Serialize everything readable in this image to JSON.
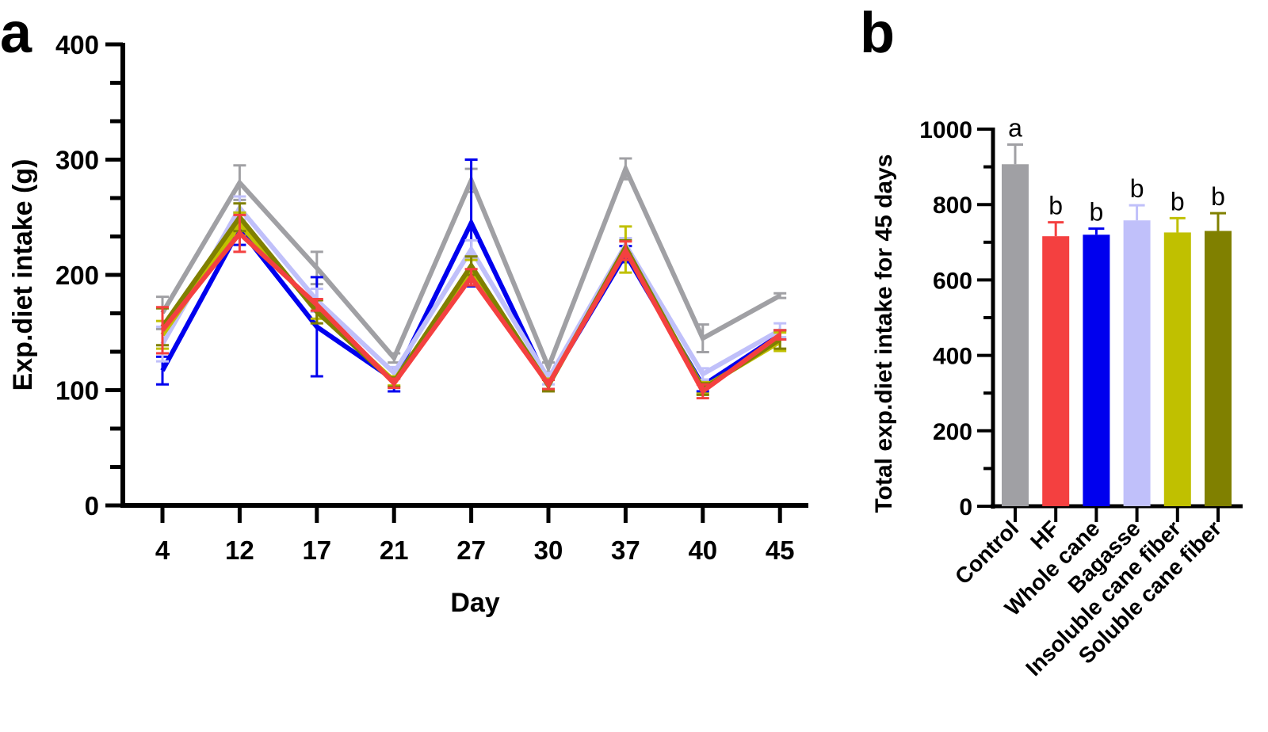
{
  "chart_data": [
    {
      "panel": "a",
      "type": "line",
      "title": "",
      "xlabel": "Day",
      "ylabel": "Exp.diet intake (g)",
      "ylim": [
        0,
        400
      ],
      "yticks": [
        0,
        100,
        200,
        300,
        400
      ],
      "x": [
        "4",
        "12",
        "17",
        "21",
        "27",
        "30",
        "37",
        "40",
        "45"
      ],
      "grid": false,
      "legend": "none",
      "series": [
        {
          "name": "Control",
          "color": "#a0a0a4",
          "values": [
            167,
            280,
            206,
            128,
            282,
            120,
            292,
            145,
            182
          ],
          "errors": [
            14,
            15,
            14,
            4,
            10,
            4,
            9,
            12,
            2
          ]
        },
        {
          "name": "Whole cane",
          "color": "#0000ee",
          "values": [
            117,
            240,
            155,
            109,
            245,
            106,
            218,
            104,
            148
          ],
          "errors": [
            12,
            14,
            43,
            10,
            55,
            5,
            7,
            5,
            4
          ]
        },
        {
          "name": "Bagasse",
          "color": "#c0c0fa",
          "values": [
            140,
            258,
            178,
            115,
            222,
            110,
            226,
            114,
            152
          ],
          "errors": [
            15,
            10,
            10,
            5,
            8,
            5,
            6,
            5,
            6
          ]
        },
        {
          "name": "Insoluble cane fiber",
          "color": "#c0c000",
          "values": [
            148,
            244,
            170,
            108,
            205,
            105,
            222,
            102,
            142
          ],
          "errors": [
            12,
            10,
            8,
            4,
            8,
            5,
            20,
            5,
            8
          ]
        },
        {
          "name": "Soluble cane fiber",
          "color": "#808000",
          "values": [
            155,
            250,
            168,
            107,
            208,
            104,
            224,
            101,
            144
          ],
          "errors": [
            16,
            12,
            10,
            4,
            8,
            5,
            6,
            5,
            8
          ]
        },
        {
          "name": "HF",
          "color": "#f44040",
          "values": [
            152,
            236,
            174,
            106,
            198,
            105,
            221,
            99,
            148
          ],
          "errors": [
            20,
            16,
            5,
            4,
            7,
            4,
            8,
            6,
            4
          ]
        }
      ]
    },
    {
      "panel": "b",
      "type": "bar",
      "title": "",
      "xlabel": "",
      "ylabel": "Total exp.diet intake for 45 days",
      "ylim": [
        0,
        1000
      ],
      "yticks": [
        0,
        200,
        400,
        600,
        800,
        1000
      ],
      "grid": false,
      "legend": "none",
      "categories": [
        "Control",
        "HF",
        "Whole cane",
        "Bagasse",
        "Insoluble cane fiber",
        "Soluble cane fiber"
      ],
      "values": [
        907,
        716,
        720,
        758,
        726,
        730
      ],
      "errors": [
        52,
        37,
        16,
        40,
        38,
        47
      ],
      "significance": [
        "a",
        "b",
        "b",
        "b",
        "b",
        "b"
      ],
      "colors": [
        "#a0a0a4",
        "#f44040",
        "#0000ee",
        "#c0c0fa",
        "#c0c000",
        "#808000"
      ]
    }
  ],
  "panel_labels": {
    "a": "a",
    "b": "b"
  }
}
